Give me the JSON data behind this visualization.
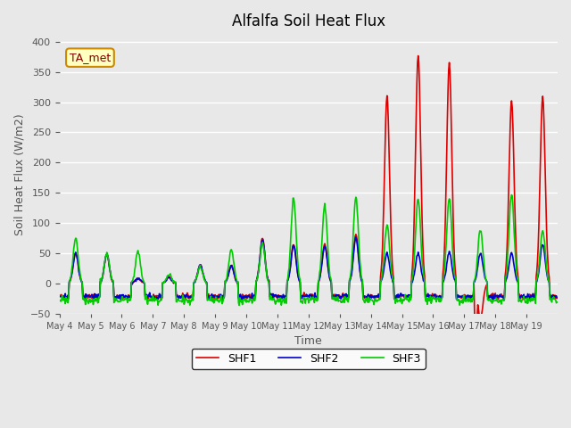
{
  "title": "Alfalfa Soil Heat Flux",
  "ylabel": "Soil Heat Flux (W/m2)",
  "xlabel": "Time",
  "ylim": [
    -50,
    410
  ],
  "yticks": [
    -50,
    0,
    50,
    100,
    150,
    200,
    250,
    300,
    350,
    400
  ],
  "background_color": "#e8e8e8",
  "plot_bg_color": "#e8e8e8",
  "colors": {
    "SHF1": "#dd0000",
    "SHF2": "#0000cc",
    "SHF3": "#00cc00"
  },
  "legend_label": "TA_met",
  "n_days": 16,
  "pts_per_day": 48,
  "x_tick_labels": [
    "May 4",
    "May 5",
    "May 6",
    "May 7",
    "May 8",
    "May 9",
    "May 10",
    "May 11",
    "May 12",
    "May 13",
    "May 14",
    "May 15",
    "May 16",
    "May 17",
    "May 18",
    "May 19"
  ],
  "shf1_scales": [
    50,
    48,
    8,
    10,
    30,
    30,
    75,
    65,
    65,
    80,
    310,
    378,
    365,
    -60,
    302,
    310
  ],
  "shf2_scales": [
    50,
    48,
    8,
    10,
    30,
    28,
    72,
    62,
    62,
    75,
    50,
    50,
    52,
    50,
    50,
    65
  ],
  "shf3_scales": [
    75,
    50,
    52,
    15,
    28,
    55,
    67,
    142,
    128,
    143,
    97,
    140,
    140,
    90,
    148,
    88
  ],
  "linewidth": 1.2
}
